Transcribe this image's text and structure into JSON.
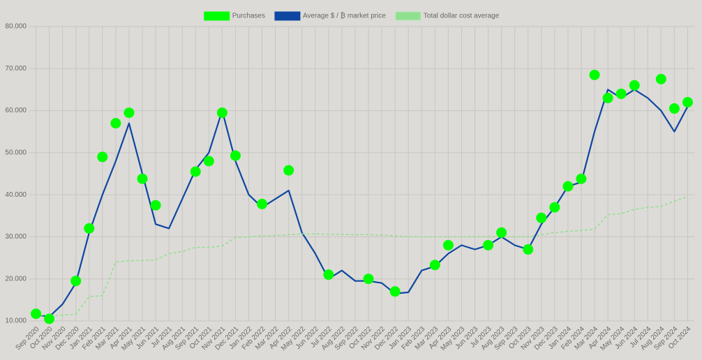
{
  "chart_data": {
    "type": "line",
    "categories": [
      "Sep 2020",
      "Oct 2020",
      "Nov 2020",
      "Dec 2020",
      "Jan 2021",
      "Feb 2021",
      "Mar 2021",
      "Apr 2021",
      "May 2021",
      "Jun 2021",
      "Jul 2021",
      "Aug 2021",
      "Sep 2021",
      "Oct 2021",
      "Nov 2021",
      "Dec 2021",
      "Jan 2022",
      "Feb 2022",
      "Mar 2022",
      "Apr 2022",
      "May 2022",
      "Jun 2022",
      "Jul 2022",
      "Aug 2022",
      "Sep 2022",
      "Oct 2022",
      "Nov 2022",
      "Dec 2022",
      "Jan 2023",
      "Feb 2023",
      "Mar 2023",
      "Apr 2023",
      "May 2023",
      "Jun 2023",
      "Jul 2023",
      "Aug 2023",
      "Sep 2023",
      "Oct 2023",
      "Nov 2023",
      "Dec 2023",
      "Jan 2024",
      "Feb 2024",
      "Mar 2024",
      "Apr 2024",
      "May 2024",
      "Jun 2024",
      "Jul 2024",
      "Aug 2024",
      "Sep 2024",
      "Oct 2024"
    ],
    "series": [
      {
        "name": "Purchases",
        "type": "scatter",
        "color": "#00ff00",
        "values": [
          11700,
          10500,
          null,
          19500,
          32000,
          49000,
          57000,
          59500,
          43800,
          37500,
          null,
          null,
          45500,
          48000,
          59500,
          49300,
          null,
          37800,
          null,
          45800,
          null,
          null,
          21000,
          null,
          null,
          20000,
          null,
          17000,
          null,
          null,
          23300,
          28000,
          null,
          null,
          28000,
          31000,
          null,
          27000,
          34500,
          37000,
          42000,
          43800,
          68500,
          63000,
          64000,
          66000,
          null,
          67500,
          60500,
          62000
        ]
      },
      {
        "name": "Average $ / ₿ market price",
        "type": "line",
        "color": "#0d47a1",
        "values": [
          11500,
          11000,
          14000,
          19000,
          31000,
          40000,
          48000,
          57000,
          45000,
          33000,
          32000,
          39000,
          46000,
          50000,
          60000,
          48000,
          40000,
          37000,
          39000,
          41000,
          31000,
          26000,
          20000,
          22000,
          19500,
          19500,
          19000,
          16500,
          16800,
          22000,
          23000,
          26000,
          28000,
          27000,
          28000,
          30000,
          28000,
          27000,
          33000,
          37000,
          42000,
          43000,
          55000,
          65000,
          63000,
          65000,
          63000,
          60000,
          55000,
          61000
        ]
      },
      {
        "name": "Total dollar cost average",
        "type": "line",
        "dashed": true,
        "color": "#8fe08f",
        "values": [
          11500,
          11200,
          11400,
          11600,
          15800,
          16000,
          24000,
          24300,
          24400,
          24500,
          26000,
          26500,
          27500,
          27500,
          27800,
          29800,
          30000,
          30200,
          30300,
          30500,
          30700,
          30700,
          30600,
          30600,
          30500,
          30500,
          30400,
          30200,
          30000,
          30000,
          30000,
          30000,
          30000,
          30000,
          30000,
          30000,
          30000,
          30000,
          30500,
          31000,
          31300,
          31500,
          31800,
          35300,
          35500,
          36500,
          37000,
          37200,
          38500,
          39500
        ]
      }
    ],
    "ylim": [
      10000,
      80000
    ],
    "yticks": [
      {
        "value": 10000,
        "label": "10.000"
      },
      {
        "value": 20000,
        "label": "20.000"
      },
      {
        "value": 30000,
        "label": "30.000"
      },
      {
        "value": 40000,
        "label": "40.000"
      },
      {
        "value": 50000,
        "label": "50.000"
      },
      {
        "value": 60000,
        "label": "60.000"
      },
      {
        "value": 70000,
        "label": "70.000"
      },
      {
        "value": 80000,
        "label": "80.000"
      }
    ],
    "grid": true,
    "legend": "top"
  }
}
